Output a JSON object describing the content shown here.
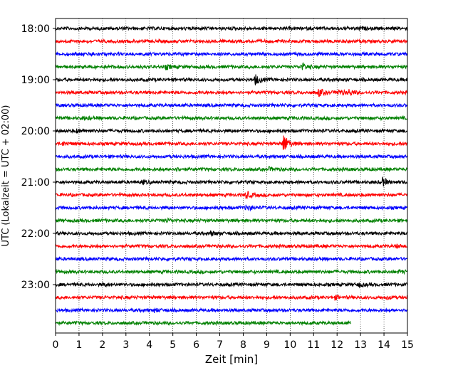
{
  "chart_data": {
    "type": "line",
    "title": "",
    "xlabel": "Zeit  [min]",
    "ylabel": "UTC (Lokalzeit = UTC + 02:00)",
    "xlim": [
      0,
      15
    ],
    "x_ticks": [
      0,
      1,
      2,
      3,
      4,
      5,
      6,
      7,
      8,
      9,
      10,
      11,
      12,
      13,
      14,
      15
    ],
    "y_ticks": [
      "18:00",
      "19:00",
      "20:00",
      "21:00",
      "22:00",
      "23:00"
    ],
    "grid": "vertical dotted lines at each minute",
    "color_cycle": [
      "#000000",
      "#ff0000",
      "#0000ff",
      "#008000"
    ],
    "trace_interval_min": 15,
    "series": [
      {
        "start": "18:00",
        "color": "#000000",
        "end_min": 15,
        "events": [
          {
            "t": 12.9,
            "amp": 0.25
          }
        ]
      },
      {
        "start": "18:15",
        "color": "#ff0000",
        "end_min": 15,
        "events": []
      },
      {
        "start": "18:30",
        "color": "#0000ff",
        "end_min": 15,
        "events": [
          {
            "t": 1.5,
            "amp": 0.3
          }
        ]
      },
      {
        "start": "18:45",
        "color": "#008000",
        "end_min": 15,
        "events": [
          {
            "t": 4.7,
            "amp": 0.4
          },
          {
            "t": 10.5,
            "amp": 0.8
          }
        ]
      },
      {
        "start": "19:00",
        "color": "#000000",
        "end_min": 15,
        "events": [
          {
            "t": 8.5,
            "amp": 1.1
          }
        ]
      },
      {
        "start": "19:15",
        "color": "#ff0000",
        "end_min": 15,
        "events": [
          {
            "t": 11.2,
            "amp": 0.8
          },
          {
            "t": 12.0,
            "amp": 0.7
          },
          {
            "t": 12.5,
            "amp": 0.6
          }
        ]
      },
      {
        "start": "19:30",
        "color": "#0000ff",
        "end_min": 15,
        "events": []
      },
      {
        "start": "19:45",
        "color": "#008000",
        "end_min": 15,
        "events": [
          {
            "t": 1.2,
            "amp": 0.3
          }
        ]
      },
      {
        "start": "20:00",
        "color": "#000000",
        "end_min": 15,
        "events": [
          {
            "t": 0.9,
            "amp": 0.3
          }
        ]
      },
      {
        "start": "20:15",
        "color": "#ff0000",
        "end_min": 15,
        "events": [
          {
            "t": 9.7,
            "amp": 2.3
          },
          {
            "t": 0.3,
            "amp": 0.3
          }
        ]
      },
      {
        "start": "20:30",
        "color": "#0000ff",
        "end_min": 15,
        "events": []
      },
      {
        "start": "20:45",
        "color": "#008000",
        "end_min": 15,
        "events": [
          {
            "t": 5.1,
            "amp": 0.3
          },
          {
            "t": 9.1,
            "amp": 0.3
          }
        ]
      },
      {
        "start": "21:00",
        "color": "#000000",
        "end_min": 15,
        "events": [
          {
            "t": 13.9,
            "amp": 1.0
          },
          {
            "t": 3.7,
            "amp": 0.3
          }
        ]
      },
      {
        "start": "21:15",
        "color": "#ff0000",
        "end_min": 15,
        "events": [
          {
            "t": 8.1,
            "amp": 0.8
          }
        ]
      },
      {
        "start": "21:30",
        "color": "#0000ff",
        "end_min": 15,
        "events": [
          {
            "t": 8.1,
            "amp": 0.6
          }
        ]
      },
      {
        "start": "21:45",
        "color": "#008000",
        "end_min": 15,
        "events": [
          {
            "t": 4.7,
            "amp": 0.3
          }
        ]
      },
      {
        "start": "22:00",
        "color": "#000000",
        "end_min": 15,
        "events": [
          {
            "t": 6.6,
            "amp": 0.4
          }
        ]
      },
      {
        "start": "22:15",
        "color": "#ff0000",
        "end_min": 15,
        "events": [
          {
            "t": 14.5,
            "amp": 0.3
          }
        ]
      },
      {
        "start": "22:30",
        "color": "#0000ff",
        "end_min": 15,
        "events": []
      },
      {
        "start": "22:45",
        "color": "#008000",
        "end_min": 15,
        "events": [
          {
            "t": 14.6,
            "amp": 0.3
          }
        ]
      },
      {
        "start": "23:00",
        "color": "#000000",
        "end_min": 15,
        "events": [
          {
            "t": 2.0,
            "amp": 0.3
          },
          {
            "t": 12.9,
            "amp": 0.4
          }
        ]
      },
      {
        "start": "23:15",
        "color": "#ff0000",
        "end_min": 15,
        "events": [
          {
            "t": 11.9,
            "amp": 0.3
          },
          {
            "t": 14.1,
            "amp": 0.3
          }
        ]
      },
      {
        "start": "23:30",
        "color": "#0000ff",
        "end_min": 15,
        "events": [
          {
            "t": 4.2,
            "amp": 0.3
          }
        ]
      },
      {
        "start": "23:45",
        "color": "#008000",
        "end_min": 12.6,
        "events": []
      }
    ]
  }
}
